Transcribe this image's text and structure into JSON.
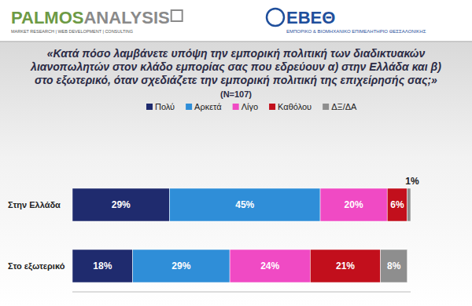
{
  "header": {
    "left_logo_main": "PALMOS",
    "left_logo_second": "ANALYSIS",
    "left_logo_tagline": "MARKET RESEARCH | WEB DEVELOPMENT | CONSULTING",
    "right_logo_main": "ΕΒΕΘ",
    "right_logo_tagline": "ΕΜΠΟΡΙΚΟ & ΒΙΟΜΗΧΑΝΙΚΟ ΕΠΙΜΕΛΗΤΗΡΙΟ ΘΕΣΣΑΛΟΝΙΚΗΣ"
  },
  "chart_data": {
    "type": "bar",
    "orientation": "horizontal",
    "stacked": true,
    "data_labels": true,
    "tick_labels": "y",
    "legend": "top",
    "title": "«Κατά πόσο λαμβάνετε υπόψη την εμπορική πολιτική των διαδικτυακών λιανοπωλητών στον κλάδο εμπορίας σας που εδρεύουν α) στην Ελλάδα και β) στο εξωτερικό, όταν σχεδιάζετε την εμπορική πολιτική της επιχείρησής σας;»",
    "subtitle": "(N=107)",
    "categories": [
      "Στην Ελλάδα",
      "Στο εξωτερικό"
    ],
    "xlim": [
      0,
      101
    ],
    "series": [
      {
        "name": "Πολύ",
        "color": "#1f2b6e",
        "values": [
          29,
          18
        ],
        "value_labels": [
          "29%",
          "18%"
        ]
      },
      {
        "name": "Αρκετά",
        "color": "#2f8ed8",
        "values": [
          45,
          29
        ],
        "value_labels": [
          "45%",
          "29%"
        ]
      },
      {
        "name": "Λίγο",
        "color": "#f04ac4",
        "values": [
          20,
          24
        ],
        "value_labels": [
          "20%",
          "24%"
        ]
      },
      {
        "name": "Καθόλου",
        "color": "#c20f1c",
        "values": [
          6,
          21
        ],
        "value_labels": [
          "6%",
          "21%"
        ]
      },
      {
        "name": "ΔΞ/ΔΑ",
        "color": "#8e8e8e",
        "values": [
          1,
          8
        ],
        "value_labels": [
          "1%",
          "8%"
        ]
      }
    ]
  }
}
